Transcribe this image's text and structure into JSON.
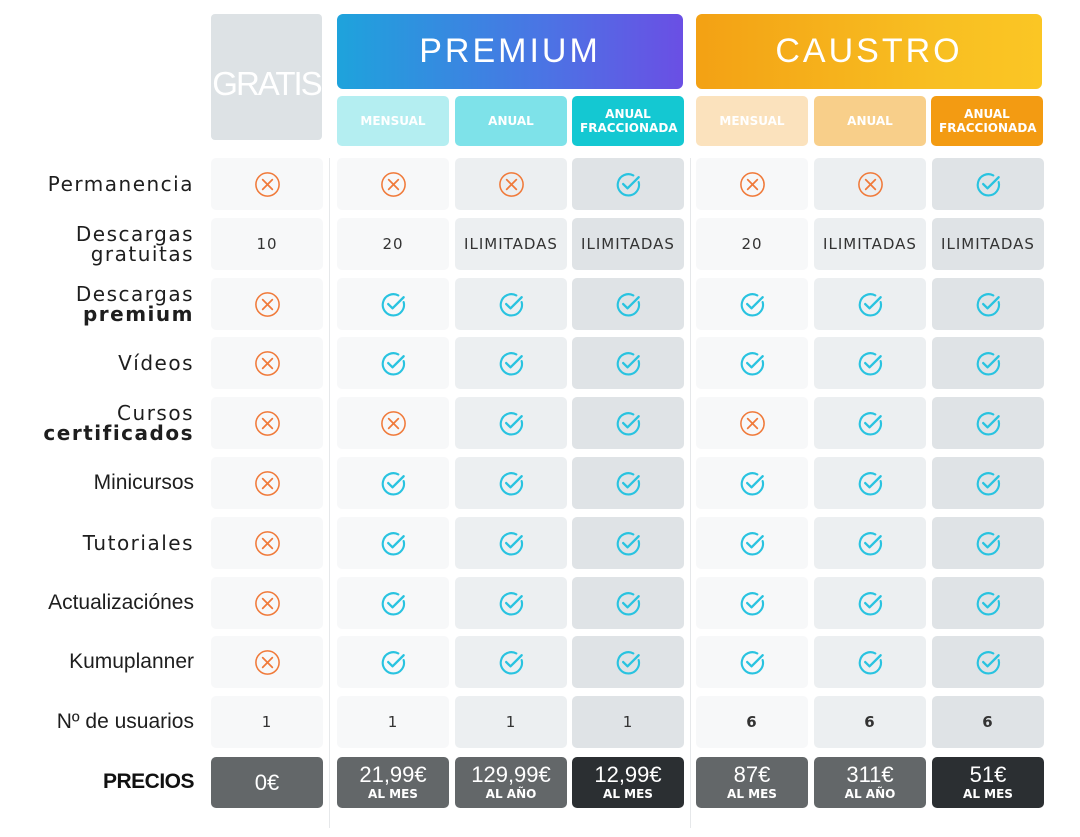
{
  "headers": {
    "gratis": "GRATIS",
    "premium": "PREMIUM",
    "caustro": "CAUSTRO"
  },
  "subheaders": {
    "premium": [
      "MENSUAL",
      "ANUAL",
      "ANUAL FRACCIONADA"
    ],
    "caustro": [
      "MENSUAL",
      "ANUAL",
      "ANUAL FRACCIONADA"
    ]
  },
  "colors": {
    "check": "#29c3e0",
    "cross": "#f07a3a",
    "premium_gradient": [
      "#1ea3dc",
      "#6a4fe4"
    ],
    "caustro_gradient": [
      "#f3a114",
      "#fbc624"
    ],
    "premium_sub": [
      "#b4eef1",
      "#7ee2e9",
      "#14c8d2"
    ],
    "caustro_sub": [
      "#fbe2bd",
      "#f8cf8a",
      "#f39b12"
    ]
  },
  "rows": [
    {
      "label_lines": [
        {
          "text": "Permanencia",
          "bold": false
        }
      ],
      "values": [
        "cross",
        "cross",
        "cross",
        "check",
        "cross",
        "cross",
        "check"
      ]
    },
    {
      "label_lines": [
        {
          "text": "Descargas",
          "bold": false
        },
        {
          "text": "gratuitas",
          "bold": false
        }
      ],
      "values": [
        "10",
        "20",
        "ILIMITADAS",
        "ILIMITADAS",
        "20",
        "ILIMITADAS",
        "ILIMITADAS"
      ]
    },
    {
      "label_lines": [
        {
          "text": "Descargas",
          "bold": false
        },
        {
          "text": "premium",
          "bold": true
        }
      ],
      "values": [
        "cross",
        "check",
        "check",
        "check",
        "check",
        "check",
        "check"
      ]
    },
    {
      "label_lines": [
        {
          "text": "Vídeos",
          "bold": false
        }
      ],
      "values": [
        "cross",
        "check",
        "check",
        "check",
        "check",
        "check",
        "check"
      ]
    },
    {
      "label_lines": [
        {
          "text": "Cursos",
          "bold": false
        },
        {
          "text": "certificados",
          "bold": true
        }
      ],
      "values": [
        "cross",
        "cross",
        "check",
        "check",
        "cross",
        "check",
        "check"
      ]
    },
    {
      "label_lines": [
        {
          "text": "Minicursos",
          "bold": false
        }
      ],
      "values": [
        "cross",
        "check",
        "check",
        "check",
        "check",
        "check",
        "check"
      ]
    },
    {
      "label_lines": [
        {
          "text": "Tutoriales",
          "bold": false
        }
      ],
      "values": [
        "cross",
        "check",
        "check",
        "check",
        "check",
        "check",
        "check"
      ]
    },
    {
      "label_lines": [
        {
          "text": "Actualizaciónes",
          "bold": false
        }
      ],
      "values": [
        "cross",
        "check",
        "check",
        "check",
        "check",
        "check",
        "check"
      ]
    },
    {
      "label_lines": [
        {
          "text": "Kumuplanner",
          "bold": false
        }
      ],
      "values": [
        "cross",
        "check",
        "check",
        "check",
        "check",
        "check",
        "check"
      ]
    },
    {
      "label_lines": [
        {
          "text": "Nº de usuarios",
          "bold": false
        }
      ],
      "values": [
        "1",
        "1",
        "1",
        "1",
        "6",
        "6",
        "6"
      ]
    }
  ],
  "prices": {
    "label": "PRECIOS",
    "items": [
      {
        "amount": "0€",
        "period": ""
      },
      {
        "amount": "21,99€",
        "period": "AL MES"
      },
      {
        "amount": "129,99€",
        "period": "AL AÑO"
      },
      {
        "amount": "12,99€",
        "period": "AL MES"
      },
      {
        "amount": "87€",
        "period": "AL MES"
      },
      {
        "amount": "311€",
        "period": "AL AÑO"
      },
      {
        "amount": "51€",
        "period": "AL MES"
      }
    ]
  }
}
